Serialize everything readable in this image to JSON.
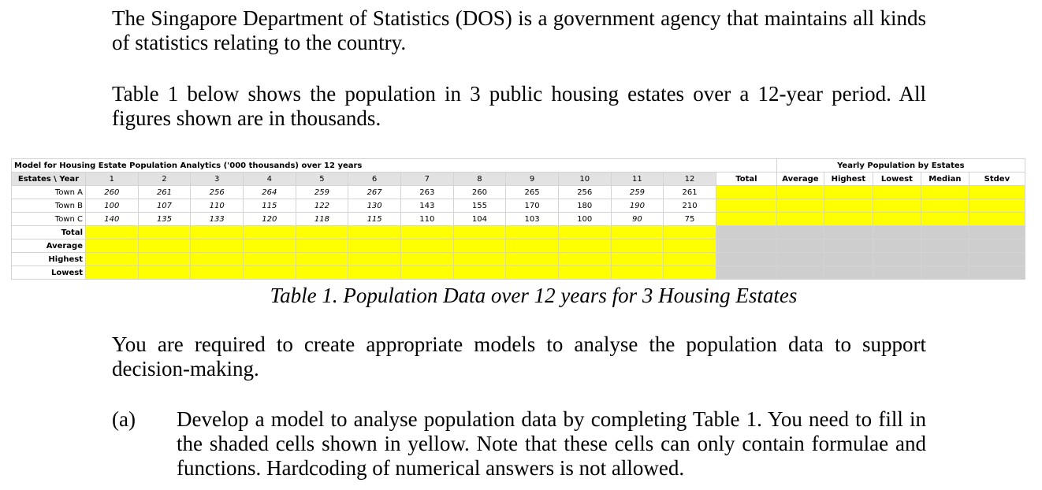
{
  "paragraphs": [
    "The Singapore Department of Statistics (DOS) is a government agency that maintains all kinds of statistics relating to the country.",
    "Table 1 below shows the population in 3 public housing estates over a 12-year period. All figures shown are in thousands.",
    "You are required to create appropriate models to analyse the population data to support decision-making."
  ],
  "table": {
    "title": "Model for Housing Estate Population Analytics ('000 thousands) over 12 years",
    "summary_title": "Yearly Population by Estates",
    "header_label": "Estates \\ Year",
    "years": [
      1,
      2,
      3,
      4,
      5,
      6,
      7,
      8,
      9,
      10,
      11,
      12
    ],
    "summary_headers": [
      "Total",
      "Average",
      "Highest",
      "Lowest",
      "Median",
      "Stdev"
    ],
    "rows": [
      {
        "label": "Town A",
        "values": [
          260,
          261,
          256,
          264,
          259,
          267,
          263,
          260,
          265,
          256,
          259,
          261
        ]
      },
      {
        "label": "Town B",
        "values": [
          100,
          107,
          110,
          115,
          122,
          130,
          143,
          155,
          170,
          180,
          190,
          210
        ]
      },
      {
        "label": "Town C",
        "values": [
          140,
          135,
          133,
          120,
          118,
          115,
          110,
          104,
          103,
          100,
          90,
          75
        ]
      }
    ],
    "footer_rows": [
      "Total",
      "Average",
      "Highest",
      "Lowest"
    ]
  },
  "caption": "Table 1. Population Data over 12 years for 3 Housing Estates",
  "question": {
    "label": "(a)",
    "text": "Develop a model to analyse population data by completing Table 1. You need to fill in the shaded cells shown in yellow. Note that these cells can only contain formulae and functions. Hardcoding of numerical answers is not allowed."
  }
}
